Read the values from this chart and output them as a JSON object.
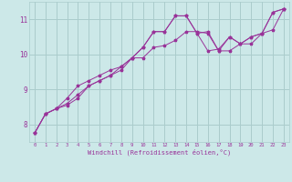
{
  "bg_color": "#cce8e8",
  "grid_color": "#aacccc",
  "line_color": "#993399",
  "marker_color": "#993399",
  "xlabel": "Windchill (Refroidissement éolien,°C)",
  "xlim": [
    -0.5,
    23.5
  ],
  "ylim": [
    7.5,
    11.5
  ],
  "yticks": [
    8,
    9,
    10,
    11
  ],
  "xticks": [
    0,
    1,
    2,
    3,
    4,
    5,
    6,
    7,
    8,
    9,
    10,
    11,
    12,
    13,
    14,
    15,
    16,
    17,
    18,
    19,
    20,
    21,
    22,
    23
  ],
  "line1_x": [
    0,
    1,
    2,
    3,
    4,
    5,
    6,
    7,
    8,
    9,
    10,
    11,
    12,
    13,
    14,
    15,
    16,
    17,
    18,
    19,
    20,
    21,
    22,
    23
  ],
  "line1_y": [
    7.75,
    8.3,
    8.45,
    8.75,
    9.1,
    9.25,
    9.4,
    9.55,
    9.65,
    9.9,
    10.2,
    10.65,
    10.65,
    11.1,
    11.1,
    10.6,
    10.65,
    10.1,
    10.5,
    10.3,
    10.5,
    10.6,
    11.2,
    11.3
  ],
  "line2_x": [
    0,
    1,
    2,
    3,
    4,
    5,
    6,
    7,
    8,
    9,
    10,
    11,
    12,
    13,
    14,
    15,
    16,
    17,
    18,
    19,
    20,
    21,
    22,
    23
  ],
  "line2_y": [
    7.75,
    8.3,
    8.45,
    8.55,
    8.75,
    9.1,
    9.25,
    9.4,
    9.65,
    9.9,
    10.2,
    10.65,
    10.65,
    11.1,
    11.1,
    10.6,
    10.1,
    10.15,
    10.5,
    10.3,
    10.5,
    10.6,
    11.2,
    11.3
  ],
  "line3_x": [
    0,
    1,
    2,
    3,
    4,
    5,
    6,
    7,
    8,
    9,
    10,
    11,
    12,
    13,
    14,
    15,
    16,
    17,
    18,
    19,
    20,
    21,
    22,
    23
  ],
  "line3_y": [
    7.75,
    8.3,
    8.45,
    8.6,
    8.85,
    9.1,
    9.25,
    9.4,
    9.55,
    9.9,
    9.9,
    10.2,
    10.25,
    10.4,
    10.65,
    10.65,
    10.6,
    10.1,
    10.1,
    10.3,
    10.3,
    10.6,
    10.7,
    11.3
  ],
  "lw": 0.7,
  "ms": 2.5,
  "xlabel_fontsize": 5.0,
  "xtick_fontsize": 4.0,
  "ytick_fontsize": 5.5
}
